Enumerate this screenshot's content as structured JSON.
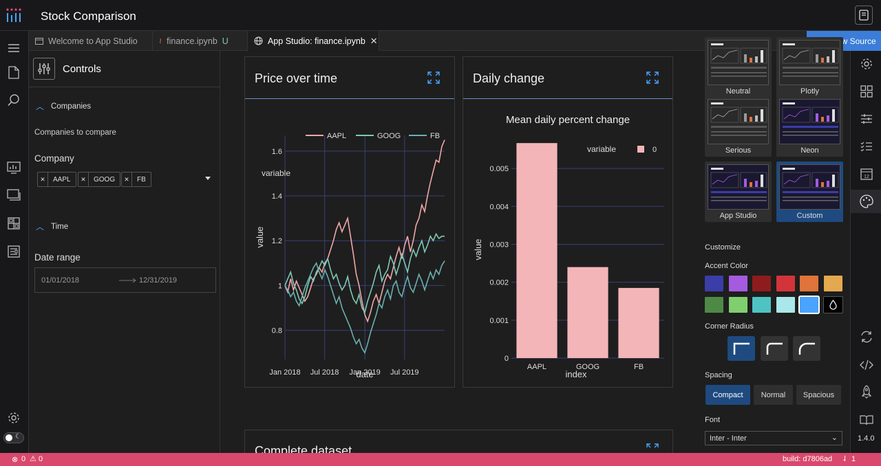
{
  "app": {
    "title": "Stock Comparison",
    "version": "1.4.0"
  },
  "tabs": [
    {
      "label": "Welcome to App Studio"
    },
    {
      "label": "finance.ipynb",
      "badge": "U"
    },
    {
      "label": "App Studio: finance.ipynb"
    }
  ],
  "show_source_label": "Show Source",
  "controls": {
    "title": "Controls",
    "companies_section": "Companies",
    "companies_hint": "Companies to compare",
    "company_label": "Company",
    "selected_companies": [
      "AAPL",
      "GOOG",
      "FB"
    ],
    "time_section": "Time",
    "date_range_label": "Date range",
    "date_start": "01/01/2018",
    "date_end": "12/31/2019"
  },
  "cards": {
    "price_title": "Price over time",
    "daily_title": "Daily change",
    "dataset_title": "Complete dataset"
  },
  "chart_data": [
    {
      "type": "line",
      "legend_title": "variable",
      "legend_placement": "top",
      "xlabel": "date",
      "ylabel": "value",
      "xticks": [
        "Jan 2018",
        "Jul 2018",
        "Jan 2019",
        "Jul 2019"
      ],
      "yticks": [
        "0.8",
        "1",
        "1.2",
        "1.4",
        "1.6"
      ],
      "ylim": [
        0.67,
        1.67
      ],
      "grid": true,
      "x_start": "2018-01-01",
      "x_end": "2019-12-31",
      "series": [
        {
          "name": "AAPL",
          "color": "#f2a7a7",
          "values": [
            1.0,
            0.97,
            1.03,
            0.98,
            1.02,
            0.99,
            0.96,
            0.93,
            0.95,
            0.99,
            1.03,
            1.05,
            1.08,
            1.06,
            1.1,
            1.12,
            1.16,
            1.2,
            1.25,
            1.28,
            1.24,
            1.27,
            1.3,
            1.22,
            1.14,
            1.05,
            1.0,
            0.93,
            0.87,
            0.84,
            0.88,
            0.93,
            0.96,
            0.92,
            0.97,
            1.02,
            1.05,
            1.03,
            1.08,
            1.13,
            1.17,
            1.12,
            1.18,
            1.22,
            1.15,
            1.2,
            1.27,
            1.3,
            1.36,
            1.33,
            1.4,
            1.46,
            1.51,
            1.56,
            1.55,
            1.62,
            1.65
          ]
        },
        {
          "name": "GOOG",
          "color": "#7fc9b4",
          "values": [
            1.0,
            1.03,
            1.06,
            1.01,
            0.98,
            0.94,
            0.92,
            0.95,
            1.0,
            1.04,
            1.02,
            1.06,
            1.08,
            1.11,
            1.09,
            1.12,
            1.07,
            1.03,
            1.05,
            1.01,
            0.98,
            1.0,
            1.04,
            0.98,
            0.94,
            0.92,
            0.96,
            0.9,
            0.88,
            0.93,
            0.97,
            1.01,
            1.06,
            1.09,
            1.02,
            1.05,
            1.07,
            1.13,
            1.1,
            1.05,
            1.09,
            1.14,
            1.1,
            1.06,
            1.12,
            1.16,
            1.13,
            1.17,
            1.2,
            1.15,
            1.18,
            1.22,
            1.2,
            1.23,
            1.21,
            1.22,
            1.22
          ]
        },
        {
          "name": "FB",
          "color": "#6ab0b0",
          "values": [
            1.0,
            0.98,
            0.95,
            0.97,
            0.93,
            0.91,
            0.95,
            0.99,
            1.02,
            1.05,
            1.08,
            1.1,
            1.06,
            1.03,
            1.07,
            1.04,
            1.0,
            0.96,
            0.92,
            0.95,
            0.9,
            0.87,
            0.84,
            0.81,
            0.77,
            0.74,
            0.76,
            0.72,
            0.7,
            0.74,
            0.79,
            0.83,
            0.87,
            0.92,
            0.9,
            0.95,
            0.98,
            0.94,
            1.0,
            1.02,
            0.97,
            0.95,
            1.0,
            1.04,
            0.99,
            0.97,
            1.01,
            1.05,
            1.02,
            0.98,
            1.02,
            1.06,
            1.03,
            1.07,
            1.05,
            1.09,
            1.11
          ]
        }
      ]
    },
    {
      "type": "bar",
      "title": "Mean daily percent change",
      "legend_title": "variable",
      "legend_entries": [
        "0"
      ],
      "legend_placement": "top-right",
      "xlabel": "index",
      "ylabel": "value",
      "categories": [
        "AAPL",
        "GOOG",
        "FB"
      ],
      "values": [
        0.00567,
        0.0024,
        0.00185
      ],
      "yticks": [
        "0",
        "0.001",
        "0.002",
        "0.003",
        "0.004",
        "0.005"
      ],
      "ylim": [
        0,
        0.0058
      ],
      "bar_color": "#f4b5b8",
      "grid": true
    }
  ],
  "theme_panel": {
    "themes": [
      {
        "name": "Neutral"
      },
      {
        "name": "Plotly"
      },
      {
        "name": "Serious"
      },
      {
        "name": "Neon"
      },
      {
        "name": "App Studio"
      },
      {
        "name": "Custom",
        "selected": true
      }
    ],
    "customize_label": "Customize",
    "accent_label": "Accent Color",
    "accent_colors": [
      "#3b3da8",
      "#a45be0",
      "#8e1c1c",
      "#d3343a",
      "#e0743a",
      "#e4a94e",
      "#4e8a46",
      "#7fcf6e",
      "#4fc3c3",
      "#a9e7ea",
      "#4aa3ff",
      "#000000"
    ],
    "radius_label": "Corner Radius",
    "spacing_label": "Spacing",
    "spacing_options": [
      "Compact",
      "Normal",
      "Spacious"
    ],
    "font_label": "Font",
    "font_value": "Inter - Inter"
  },
  "status": {
    "errors": "0",
    "warnings": "0",
    "build": "build: d7806ad",
    "notifications": "1"
  }
}
